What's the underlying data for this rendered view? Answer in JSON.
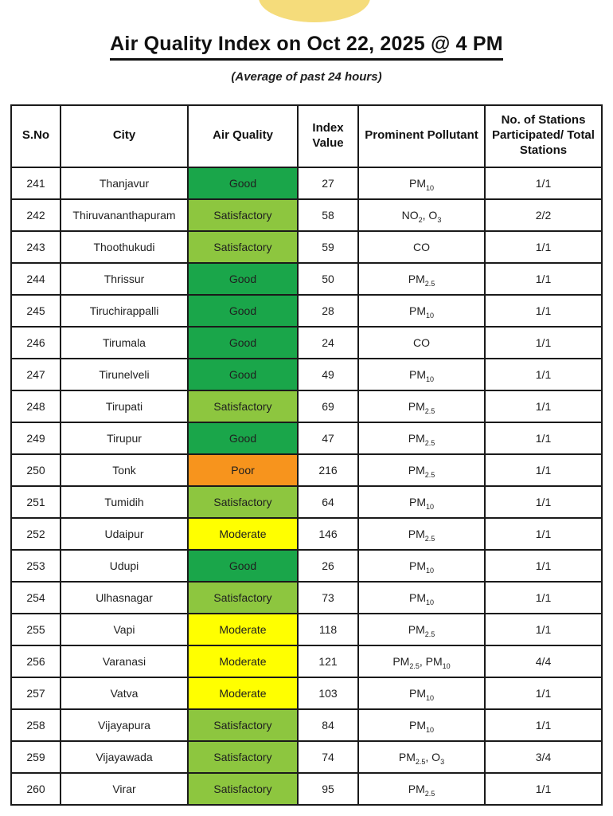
{
  "page": {
    "title": "Air Quality Index on Oct 22, 2025 @ 4 PM",
    "subtitle": "(Average of past 24 hours)",
    "sun_icon_color": "#F5DC7B"
  },
  "status_colors": {
    "Good": "#1AA64A",
    "Satisfactory": "#8DC63F",
    "Moderate": "#FFFF00",
    "Poor": "#F7941D"
  },
  "table": {
    "columns": [
      "S.No",
      "City",
      "Air Quality",
      "Index Value",
      "Prominent Pollutant",
      "No. of Stations Participated/ Total Stations"
    ],
    "rows": [
      {
        "sno": "241",
        "city": "Thanjavur",
        "air_quality": "Good",
        "index_value": "27",
        "pollutant": "PM_{10}",
        "stations": "1/1"
      },
      {
        "sno": "242",
        "city": "Thiruvananthapuram",
        "air_quality": "Satisfactory",
        "index_value": "58",
        "pollutant": "NO_{2}, O_{3}",
        "stations": "2/2"
      },
      {
        "sno": "243",
        "city": "Thoothukudi",
        "air_quality": "Satisfactory",
        "index_value": "59",
        "pollutant": "CO",
        "stations": "1/1"
      },
      {
        "sno": "244",
        "city": "Thrissur",
        "air_quality": "Good",
        "index_value": "50",
        "pollutant": "PM_{2.5}",
        "stations": "1/1"
      },
      {
        "sno": "245",
        "city": "Tiruchirappalli",
        "air_quality": "Good",
        "index_value": "28",
        "pollutant": "PM_{10}",
        "stations": "1/1"
      },
      {
        "sno": "246",
        "city": "Tirumala",
        "air_quality": "Good",
        "index_value": "24",
        "pollutant": "CO",
        "stations": "1/1"
      },
      {
        "sno": "247",
        "city": "Tirunelveli",
        "air_quality": "Good",
        "index_value": "49",
        "pollutant": "PM_{10}",
        "stations": "1/1"
      },
      {
        "sno": "248",
        "city": "Tirupati",
        "air_quality": "Satisfactory",
        "index_value": "69",
        "pollutant": "PM_{2.5}",
        "stations": "1/1"
      },
      {
        "sno": "249",
        "city": "Tirupur",
        "air_quality": "Good",
        "index_value": "47",
        "pollutant": "PM_{2.5}",
        "stations": "1/1"
      },
      {
        "sno": "250",
        "city": "Tonk",
        "air_quality": "Poor",
        "index_value": "216",
        "pollutant": "PM_{2.5}",
        "stations": "1/1"
      },
      {
        "sno": "251",
        "city": "Tumidih",
        "air_quality": "Satisfactory",
        "index_value": "64",
        "pollutant": "PM_{10}",
        "stations": "1/1"
      },
      {
        "sno": "252",
        "city": "Udaipur",
        "air_quality": "Moderate",
        "index_value": "146",
        "pollutant": "PM_{2.5}",
        "stations": "1/1"
      },
      {
        "sno": "253",
        "city": "Udupi",
        "air_quality": "Good",
        "index_value": "26",
        "pollutant": "PM_{10}",
        "stations": "1/1"
      },
      {
        "sno": "254",
        "city": "Ulhasnagar",
        "air_quality": "Satisfactory",
        "index_value": "73",
        "pollutant": "PM_{10}",
        "stations": "1/1"
      },
      {
        "sno": "255",
        "city": "Vapi",
        "air_quality": "Moderate",
        "index_value": "118",
        "pollutant": "PM_{2.5}",
        "stations": "1/1"
      },
      {
        "sno": "256",
        "city": "Varanasi",
        "air_quality": "Moderate",
        "index_value": "121",
        "pollutant": "PM_{2.5}, PM_{10}",
        "stations": "4/4"
      },
      {
        "sno": "257",
        "city": "Vatva",
        "air_quality": "Moderate",
        "index_value": "103",
        "pollutant": "PM_{10}",
        "stations": "1/1"
      },
      {
        "sno": "258",
        "city": "Vijayapura",
        "air_quality": "Satisfactory",
        "index_value": "84",
        "pollutant": "PM_{10}",
        "stations": "1/1"
      },
      {
        "sno": "259",
        "city": "Vijayawada",
        "air_quality": "Satisfactory",
        "index_value": "74",
        "pollutant": "PM_{2.5}, O_{3}",
        "stations": "3/4"
      },
      {
        "sno": "260",
        "city": "Virar",
        "air_quality": "Satisfactory",
        "index_value": "95",
        "pollutant": "PM_{2.5}",
        "stations": "1/1"
      }
    ]
  }
}
